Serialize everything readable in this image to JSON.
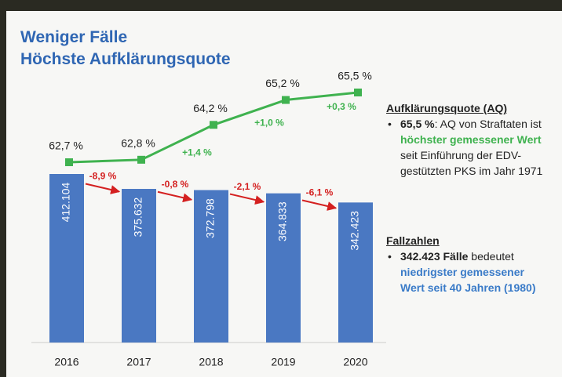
{
  "title": [
    "Weniger Fälle",
    "Höchste Aufklärungsquote"
  ],
  "chart_data": {
    "type": "bar",
    "categories": [
      "2016",
      "2017",
      "2018",
      "2019",
      "2020"
    ],
    "series": [
      {
        "type": "bar",
        "color": "#4a78c2",
        "values": [
          412104,
          375632,
          372798,
          364833,
          342423
        ],
        "value_labels": [
          "412.104",
          "375.632",
          "372.798",
          "364.833",
          "342.423"
        ],
        "change_labels": [
          "-8,9 %",
          "-0,8 %",
          "-2,1 %",
          "-6,1 %"
        ],
        "change_color": "#d42020"
      },
      {
        "type": "line",
        "color": "#3fb24f",
        "values": [
          62.7,
          62.8,
          64.2,
          65.2,
          65.5
        ],
        "value_labels": [
          "62,7 %",
          "62,8 %",
          "64,2 %",
          "65,2 %",
          "65,5 %"
        ],
        "change_labels": [
          null,
          "+1,4 %",
          "+1,0 %",
          "+0,3 %"
        ],
        "change_color": "#3fb24f"
      }
    ]
  },
  "panel": {
    "aq": {
      "heading": "Aufklärungsquote (AQ)",
      "segments": [
        "65,5 %",
        ": AQ von Straftaten ist ",
        "höchster gemessener Wert",
        " seit Einführung der EDV-gestützten PKS im Jahr 1971"
      ]
    },
    "cases": {
      "heading": "Fallzahlen",
      "segments": [
        "342.423 Fälle",
        " bedeutet ",
        "niedrigster gemessener Wert seit 40 Jahren (1980)"
      ]
    }
  }
}
